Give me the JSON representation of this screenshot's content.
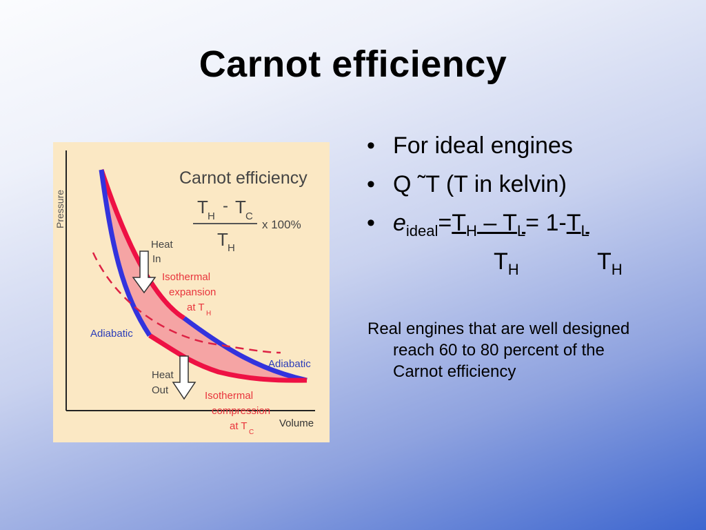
{
  "slide": {
    "title": "Carnot efficiency"
  },
  "figure": {
    "title": "Carnot efficiency",
    "formula_num_a": "T",
    "formula_num_a_sub": "H",
    "formula_minus": "-",
    "formula_num_b": "T",
    "formula_num_b_sub": "C",
    "formula_times": "x 100%",
    "formula_den": "T",
    "formula_den_sub": "H",
    "y_axis_label": "Pressure",
    "x_axis_label": "Volume",
    "heat_in_line1": "Heat",
    "heat_in_line2": "In",
    "heat_out_line1": "Heat",
    "heat_out_line2": "Out",
    "iso_exp_line1": "Isothermal",
    "iso_exp_line2": "expansion",
    "iso_exp_line3": "at T",
    "iso_exp_sub": "H",
    "iso_comp_line1": "Isothermal",
    "iso_comp_line2": "compression",
    "iso_comp_line3": "at T",
    "iso_comp_sub": "C",
    "adiabatic_left": "Adiabatic",
    "adiabatic_right": "Adiabatic",
    "colors": {
      "isothermal": "#ee1144",
      "adiabatic": "#3333dd",
      "fill": "#f5a4a4",
      "label_red": "#e8343c",
      "label_blue": "#2a3cb8",
      "background": "#fbe8c4"
    }
  },
  "bullets": {
    "b1": "For ideal engines",
    "b2": "Q ˜T (T in kelvin)",
    "b3_e": "e",
    "b3_sub": "ideal",
    "b3_eq": "=",
    "b3_T1": "T",
    "b3_H1": "H",
    "b3_mid": " – T",
    "b3_L1": "L",
    "b3_eq2": "= 1-",
    "b3_T2": "T",
    "b3_L2": "L",
    "den1_T": "T",
    "den1_H": "H",
    "den2_T": "T",
    "den2_H": "H"
  },
  "note": {
    "line1": "Real engines that are well designed",
    "line2": "reach 60 to 80 percent of the",
    "line3": "Carnot efficiency"
  }
}
